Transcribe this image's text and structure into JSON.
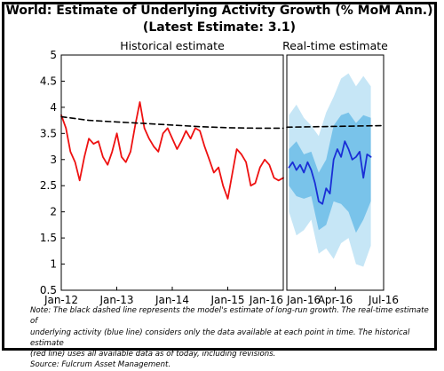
{
  "title_line1": "World: Estimate of Underlying Activity Growth (% MoM Ann.)",
  "title_line2": "(Latest Estimate: 3.1)",
  "colors": {
    "historical": "#ee1111",
    "realtime": "#1a2ed6",
    "longrun": "#000000",
    "band_outer": "#c6e6f6",
    "band_inner": "#79c3ea"
  },
  "chart_data": [
    {
      "type": "line",
      "panel_title": "Historical estimate",
      "xlim": [
        "2012-01",
        "2016-01"
      ],
      "x_ticks": [
        "Jan-12",
        "Jan-13",
        "Jan-14",
        "Jan-15",
        "Jan-16"
      ],
      "ylim": [
        0.5,
        5
      ],
      "y_ticks": [
        "0.5",
        "1",
        "1.5",
        "2",
        "2.5",
        "3",
        "3.5",
        "4",
        "4.5",
        "5"
      ],
      "series": [
        {
          "style": "solid",
          "x": [
            "2012-01",
            "2012-02",
            "2012-03",
            "2012-04",
            "2012-05",
            "2012-06",
            "2012-07",
            "2012-08",
            "2012-09",
            "2012-10",
            "2012-11",
            "2012-12",
            "2013-01",
            "2013-02",
            "2013-03",
            "2013-04",
            "2013-05",
            "2013-06",
            "2013-07",
            "2013-08",
            "2013-09",
            "2013-10",
            "2013-11",
            "2013-12",
            "2014-01",
            "2014-02",
            "2014-03",
            "2014-04",
            "2014-05",
            "2014-06",
            "2014-07",
            "2014-08",
            "2014-09",
            "2014-10",
            "2014-11",
            "2014-12",
            "2015-01",
            "2015-02",
            "2015-03",
            "2015-04",
            "2015-05",
            "2015-06",
            "2015-07",
            "2015-08",
            "2015-09",
            "2015-10",
            "2015-11",
            "2015-12",
            "2016-01"
          ],
          "values": [
            3.85,
            3.6,
            3.15,
            2.95,
            2.6,
            3.05,
            3.4,
            3.3,
            3.35,
            3.05,
            2.9,
            3.15,
            3.5,
            3.05,
            2.95,
            3.15,
            3.65,
            4.1,
            3.6,
            3.4,
            3.25,
            3.15,
            3.5,
            3.6,
            3.4,
            3.2,
            3.35,
            3.55,
            3.4,
            3.6,
            3.55,
            3.25,
            3.0,
            2.75,
            2.85,
            2.5,
            2.25,
            2.75,
            3.2,
            3.1,
            2.95,
            2.5,
            2.55,
            2.85,
            3.0,
            2.9,
            2.65,
            2.6,
            2.65
          ]
        },
        {
          "style": "dashed",
          "x": [
            "2012-01",
            "2012-07",
            "2013-01",
            "2013-07",
            "2014-01",
            "2014-07",
            "2015-01",
            "2015-07",
            "2016-01"
          ],
          "values": [
            3.82,
            3.75,
            3.72,
            3.69,
            3.66,
            3.63,
            3.61,
            3.6,
            3.6
          ]
        }
      ]
    },
    {
      "type": "line",
      "panel_title": "Real-time estimate",
      "xlim": [
        "2016-01",
        "2016-07"
      ],
      "x_ticks": [
        "Jan-16",
        "Apr-16",
        "Jul-16"
      ],
      "ylim": [
        0.5,
        5
      ],
      "series": [
        {
          "style": "solid",
          "x": [
            "2016-01-05",
            "2016-01-12",
            "2016-01-19",
            "2016-01-26",
            "2016-02-02",
            "2016-02-09",
            "2016-02-16",
            "2016-02-23",
            "2016-03-01",
            "2016-03-08",
            "2016-03-15",
            "2016-03-22",
            "2016-03-29",
            "2016-04-05",
            "2016-04-12",
            "2016-04-19",
            "2016-04-26",
            "2016-05-03",
            "2016-05-10",
            "2016-05-17",
            "2016-05-24",
            "2016-05-31",
            "2016-06-07"
          ],
          "values": [
            2.85,
            2.95,
            2.8,
            2.9,
            2.75,
            2.95,
            2.8,
            2.55,
            2.2,
            2.15,
            2.45,
            2.35,
            3.0,
            3.2,
            3.05,
            3.35,
            3.2,
            3.0,
            3.05,
            3.15,
            2.65,
            3.1,
            3.05
          ]
        },
        {
          "style": "dashed",
          "x": [
            "2016-01",
            "2016-07"
          ],
          "values": [
            3.62,
            3.65
          ]
        }
      ],
      "bands": [
        {
          "name": "outer",
          "x": [
            "2016-01-05",
            "2016-01-19",
            "2016-02-02",
            "2016-02-16",
            "2016-03-01",
            "2016-03-15",
            "2016-03-29",
            "2016-04-12",
            "2016-04-26",
            "2016-05-10",
            "2016-05-24",
            "2016-06-07"
          ],
          "low": [
            2.0,
            1.55,
            1.65,
            1.85,
            1.2,
            1.3,
            1.1,
            1.4,
            1.5,
            1.0,
            0.95,
            1.35
          ],
          "high": [
            3.85,
            4.05,
            3.8,
            3.65,
            3.45,
            3.9,
            4.2,
            4.55,
            4.65,
            4.4,
            4.6,
            4.4
          ]
        },
        {
          "name": "inner",
          "x": [
            "2016-01-05",
            "2016-01-19",
            "2016-02-02",
            "2016-02-16",
            "2016-03-01",
            "2016-03-15",
            "2016-03-29",
            "2016-04-12",
            "2016-04-26",
            "2016-05-10",
            "2016-05-24",
            "2016-06-07"
          ],
          "low": [
            2.5,
            2.3,
            2.25,
            2.3,
            1.65,
            1.75,
            2.2,
            2.15,
            2.0,
            1.6,
            1.85,
            2.2
          ],
          "high": [
            3.2,
            3.35,
            3.1,
            3.15,
            2.75,
            3.0,
            3.65,
            3.85,
            3.9,
            3.7,
            3.85,
            3.8
          ]
        }
      ]
    }
  ],
  "note_lines": [
    "Note: The black dashed line represents the model's estimate of long-run growth. The real-time estimate of",
    "underlying activity (blue line) considers only the data available at each point in time. The historical estimate",
    "(red line) uses all available data as of today, including revisions."
  ],
  "source": "Source: Fulcrum Asset Management."
}
